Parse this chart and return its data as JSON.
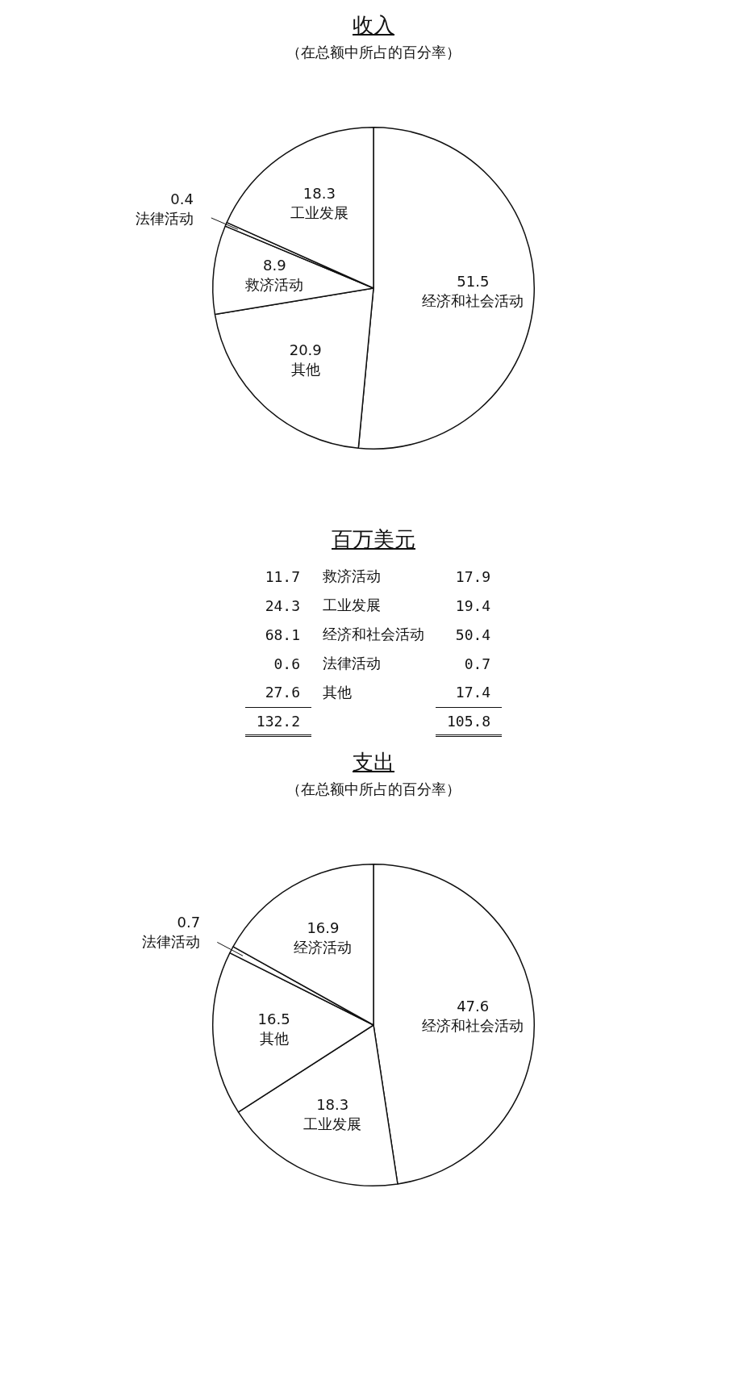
{
  "chart_data": [
    {
      "type": "pie",
      "title": "收入",
      "subtitle": "（在总额中所占的百分率）",
      "categories": [
        "经济和社会活动",
        "其他",
        "救济活动",
        "法律活动",
        "工业发展"
      ],
      "values": [
        51.5,
        20.9,
        8.9,
        0.4,
        18.3
      ],
      "colors": [
        "#ffffff",
        "#ffffff",
        "#ffffff",
        "#ffffff",
        "#ffffff"
      ],
      "data_labels": true
    },
    {
      "type": "other",
      "title": "百万美元",
      "categories": [
        "救济活动",
        "工业发展",
        "经济和社会活动",
        "法律活动",
        "其他"
      ],
      "series": [
        {
          "values": [
            11.7,
            24.3,
            68.1,
            0.6,
            27.6
          ]
        },
        {
          "values": [
            17.9,
            19.4,
            50.4,
            0.7,
            17.4
          ]
        }
      ],
      "annotations": [
        "132.2",
        "105.8"
      ],
      "data_labels": true
    },
    {
      "type": "pie",
      "title": "支出",
      "subtitle": "（在总额中所占的百分率）",
      "categories": [
        "经济和社会活动",
        "工业发展",
        "其他",
        "法律活动",
        "经济活动"
      ],
      "values": [
        47.6,
        18.3,
        16.5,
        0.7,
        16.9
      ],
      "colors": [
        "#ffffff",
        "#ffffff",
        "#ffffff",
        "#ffffff",
        "#ffffff"
      ],
      "data_labels": true
    }
  ]
}
